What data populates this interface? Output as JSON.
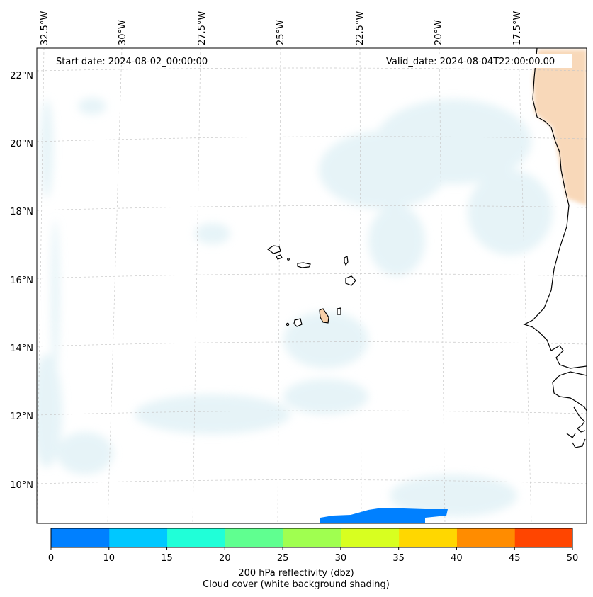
{
  "map": {
    "start_date": "Start date: 2024-08-02_00:00:00",
    "valid_date": "Valid_date: 2024-08-04T22:00:00.00",
    "lon_labels": [
      "32.5°W",
      "30°W",
      "27.5°W",
      "25°W",
      "22.5°W",
      "20°W",
      "17.5°W"
    ],
    "lat_labels": [
      "22°N",
      "20°N",
      "18°N",
      "16°N",
      "14°N",
      "12°N",
      "10°N"
    ],
    "extent": {
      "lon": [
        -33,
        -15.5
      ],
      "lat": [
        8.9,
        22.8
      ]
    }
  },
  "colorbar": {
    "ticks": [
      "0",
      "10",
      "15",
      "20",
      "25",
      "30",
      "35",
      "40",
      "45",
      "50"
    ],
    "colors": [
      "#0080ff",
      "#00c8ff",
      "#20ffd8",
      "#60ff90",
      "#a0ff50",
      "#d8ff20",
      "#ffd700",
      "#ff8c00",
      "#ff4500"
    ],
    "label_line1": "200 hPa reflectivity (dbz)",
    "label_line2": "Cloud cover (white background shading)"
  }
}
